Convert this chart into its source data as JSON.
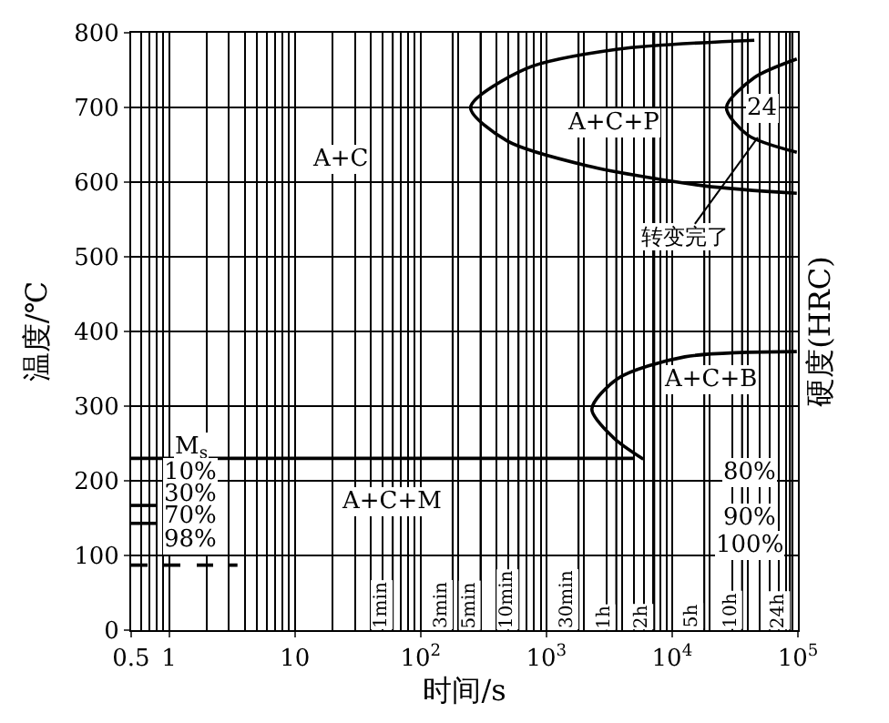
{
  "chart_data": {
    "type": "line",
    "xlabel": "时间/s",
    "ylabel": "温度/℃",
    "y2label": "硬度(HRC)",
    "log": "x",
    "grid": true,
    "marker": "none",
    "xlim": [
      0.5,
      100000
    ],
    "ylim": [
      0,
      800
    ],
    "xticks": [
      0.5,
      1,
      10,
      {
        "value": 100,
        "label": "10$^{2}$"
      },
      {
        "value": 1000,
        "label": "10$^{3}$"
      },
      {
        "value": 10000,
        "label": "10$^{4}$"
      },
      {
        "value": 100000,
        "label": "10$^{5}$"
      }
    ],
    "yticks": [
      0,
      100,
      200,
      300,
      400,
      500,
      600,
      700,
      800
    ],
    "series": [
      {
        "color": "#000000",
        "x": [
          45000,
          3700,
          690,
          250,
          490,
          2100,
          18000,
          98000
        ],
        "values": [
          790,
          778,
          752,
          700,
          655,
          622,
          595,
          585
        ]
      },
      {
        "color": "#000000",
        "x": [
          98000,
          45000,
          27000,
          40000,
          98000
        ],
        "values": [
          765,
          740,
          700,
          663,
          640
        ]
      },
      {
        "color": "#000000",
        "x": [
          98000,
          12600,
          3700,
          2300,
          3400,
          5900
        ],
        "values": [
          373,
          366,
          337,
          296,
          258,
          229
        ]
      },
      {
        "color": "#000000",
        "x": [
          0.5,
          4900
        ],
        "values": [
          230,
          230
        ]
      },
      {
        "color": "#000000",
        "x": [
          0.5,
          0.8
        ],
        "values": [
          167,
          167
        ]
      },
      {
        "color": "#000000",
        "x": [
          0.5,
          0.8
        ],
        "values": [
          143,
          143
        ]
      },
      {
        "color": "#000000",
        "x": [
          0.5,
          3.5
        ],
        "values": [
          87,
          87
        ],
        "line_style": "dashed"
      }
    ],
    "ref_lines": [
      {
        "axis": "x",
        "value": 60,
        "label": "1min"
      },
      {
        "axis": "x",
        "value": 180,
        "label": "3min"
      },
      {
        "axis": "x",
        "value": 300,
        "label": "5min"
      },
      {
        "axis": "x",
        "value": 600,
        "label": "10min"
      },
      {
        "axis": "x",
        "value": 1800,
        "label": "30min"
      },
      {
        "axis": "x",
        "value": 3600,
        "label": "1h"
      },
      {
        "axis": "x",
        "value": 7200,
        "label": "2h"
      },
      {
        "axis": "x",
        "value": 18000,
        "label": "5h"
      },
      {
        "axis": "x",
        "value": 36000,
        "label": "10h"
      },
      {
        "axis": "x",
        "value": 86400,
        "label": "24h"
      }
    ],
    "annotations": [
      {
        "text": "A+C",
        "x": 23,
        "y": 631
      },
      {
        "text": "A+C+P",
        "x": 3400,
        "y": 680
      },
      {
        "text": "24",
        "x": 52000,
        "y": 700
      },
      {
        "text": "转变完了",
        "x": 48000,
        "y": 660
      },
      {
        "text": "A+C+B",
        "x": 20000,
        "y": 335
      },
      {
        "text": "A+C+M",
        "x": 58,
        "y": 173
      },
      {
        "text": "M$_{s}$",
        "x": 1.5,
        "y": 243
      },
      {
        "text": "10%",
        "x": 1.5,
        "y": 212
      },
      {
        "text": "30%",
        "x": 1.5,
        "y": 181
      },
      {
        "text": "70%",
        "x": 1.5,
        "y": 152
      },
      {
        "text": "98%",
        "x": 1.5,
        "y": 120
      },
      {
        "text": "80%",
        "x": 42000,
        "y": 212
      },
      {
        "text": "90%",
        "x": 42000,
        "y": 149
      },
      {
        "text": "100%",
        "x": 42000,
        "y": 113
      }
    ]
  }
}
